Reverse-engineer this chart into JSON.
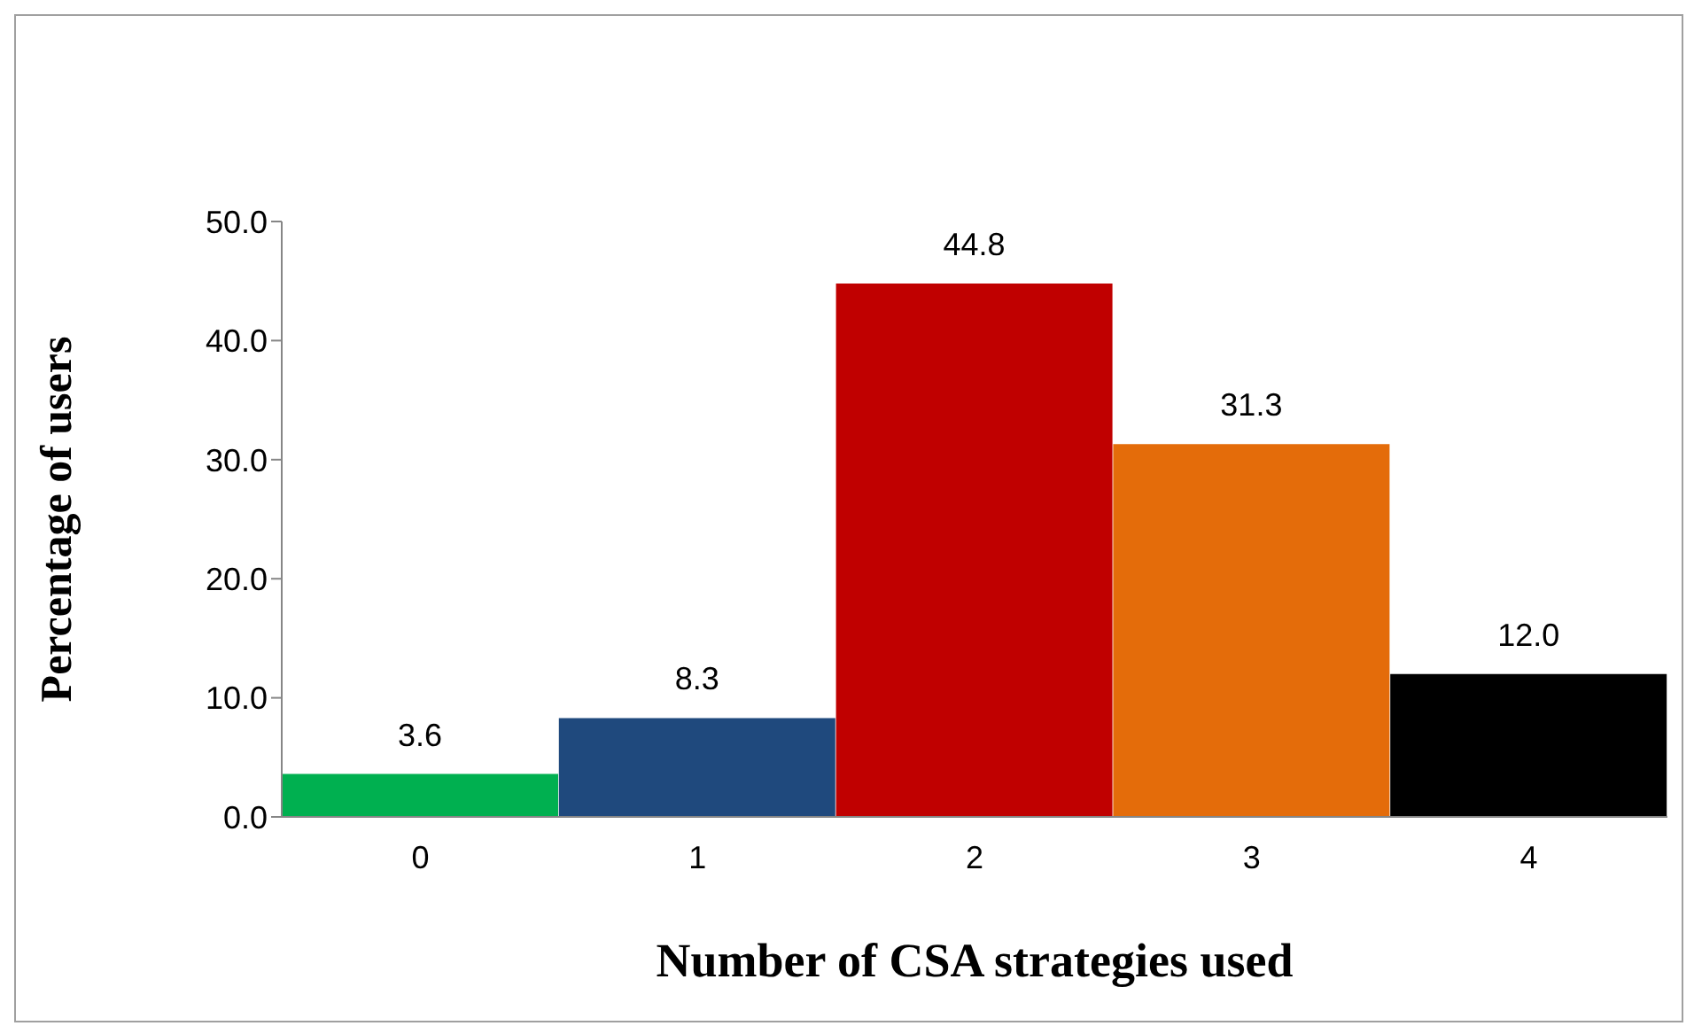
{
  "chart_data": {
    "type": "bar",
    "xlabel": "Number of CSA strategies used",
    "ylabel": "Percentage of users",
    "categories": [
      "0",
      "1",
      "2",
      "3",
      "4"
    ],
    "values": [
      3.6,
      8.3,
      44.8,
      31.3,
      12.0
    ],
    "colors": [
      "#00b050",
      "#1f497d",
      "#c00000",
      "#e46c0a",
      "#000000"
    ],
    "ylim": [
      0,
      50
    ],
    "yticks": [
      {
        "value": 0,
        "label": "0.0"
      },
      {
        "value": 10,
        "label": "10.0"
      },
      {
        "value": 20,
        "label": "20.0"
      },
      {
        "value": 30,
        "label": "30.0"
      },
      {
        "value": 40,
        "label": "40.0"
      },
      {
        "value": 50,
        "label": "50.0"
      }
    ],
    "value_labels": [
      "3.6",
      "8.3",
      "44.8",
      "31.3",
      "12.0"
    ],
    "grid": false,
    "legend": false
  }
}
